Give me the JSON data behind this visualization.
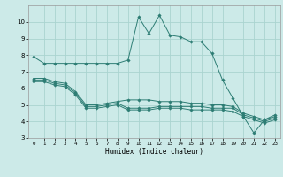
{
  "xlabel": "Humidex (Indice chaleur)",
  "bg_color": "#cceae8",
  "grid_color": "#aad4d0",
  "line_color": "#2d7d74",
  "xlim": [
    -0.5,
    23.5
  ],
  "ylim": [
    3,
    11
  ],
  "yticks": [
    3,
    4,
    5,
    6,
    7,
    8,
    9,
    10
  ],
  "xticks": [
    0,
    1,
    2,
    3,
    4,
    5,
    6,
    7,
    8,
    9,
    10,
    11,
    12,
    13,
    14,
    15,
    16,
    17,
    18,
    19,
    20,
    21,
    22,
    23
  ],
  "series": [
    {
      "x": [
        0,
        1,
        2,
        3,
        4,
        5,
        6,
        7,
        8,
        9,
        10,
        11,
        12,
        13,
        14,
        15,
        16,
        17,
        18,
        19,
        20,
        21,
        22,
        23
      ],
      "y": [
        7.9,
        7.5,
        7.5,
        7.5,
        7.5,
        7.5,
        7.5,
        7.5,
        7.5,
        7.7,
        10.3,
        9.3,
        10.4,
        9.2,
        9.1,
        8.8,
        8.8,
        8.1,
        6.5,
        5.4,
        4.3,
        3.3,
        4.1,
        4.4
      ]
    },
    {
      "x": [
        0,
        1,
        2,
        3,
        4,
        5,
        6,
        7,
        8,
        9,
        10,
        11,
        12,
        13,
        14,
        15,
        16,
        17,
        18,
        19,
        20,
        21,
        22,
        23
      ],
      "y": [
        6.6,
        6.6,
        6.4,
        6.3,
        5.8,
        5.0,
        5.0,
        5.1,
        5.2,
        5.3,
        5.3,
        5.3,
        5.2,
        5.2,
        5.2,
        5.1,
        5.1,
        5.0,
        5.0,
        4.9,
        4.5,
        4.3,
        4.1,
        4.3
      ]
    },
    {
      "x": [
        0,
        1,
        2,
        3,
        4,
        5,
        6,
        7,
        8,
        9,
        10,
        11,
        12,
        13,
        14,
        15,
        16,
        17,
        18,
        19,
        20,
        21,
        22,
        23
      ],
      "y": [
        6.5,
        6.5,
        6.3,
        6.2,
        5.7,
        4.9,
        4.9,
        5.0,
        5.1,
        4.8,
        4.8,
        4.8,
        4.9,
        4.9,
        4.9,
        4.9,
        4.9,
        4.8,
        4.8,
        4.8,
        4.4,
        4.2,
        4.0,
        4.2
      ]
    },
    {
      "x": [
        0,
        1,
        2,
        3,
        4,
        5,
        6,
        7,
        8,
        9,
        10,
        11,
        12,
        13,
        14,
        15,
        16,
        17,
        18,
        19,
        20,
        21,
        22,
        23
      ],
      "y": [
        6.4,
        6.4,
        6.2,
        6.1,
        5.6,
        4.8,
        4.8,
        4.9,
        5.0,
        4.7,
        4.7,
        4.7,
        4.8,
        4.8,
        4.8,
        4.7,
        4.7,
        4.7,
        4.7,
        4.6,
        4.3,
        4.1,
        3.9,
        4.1
      ]
    }
  ]
}
